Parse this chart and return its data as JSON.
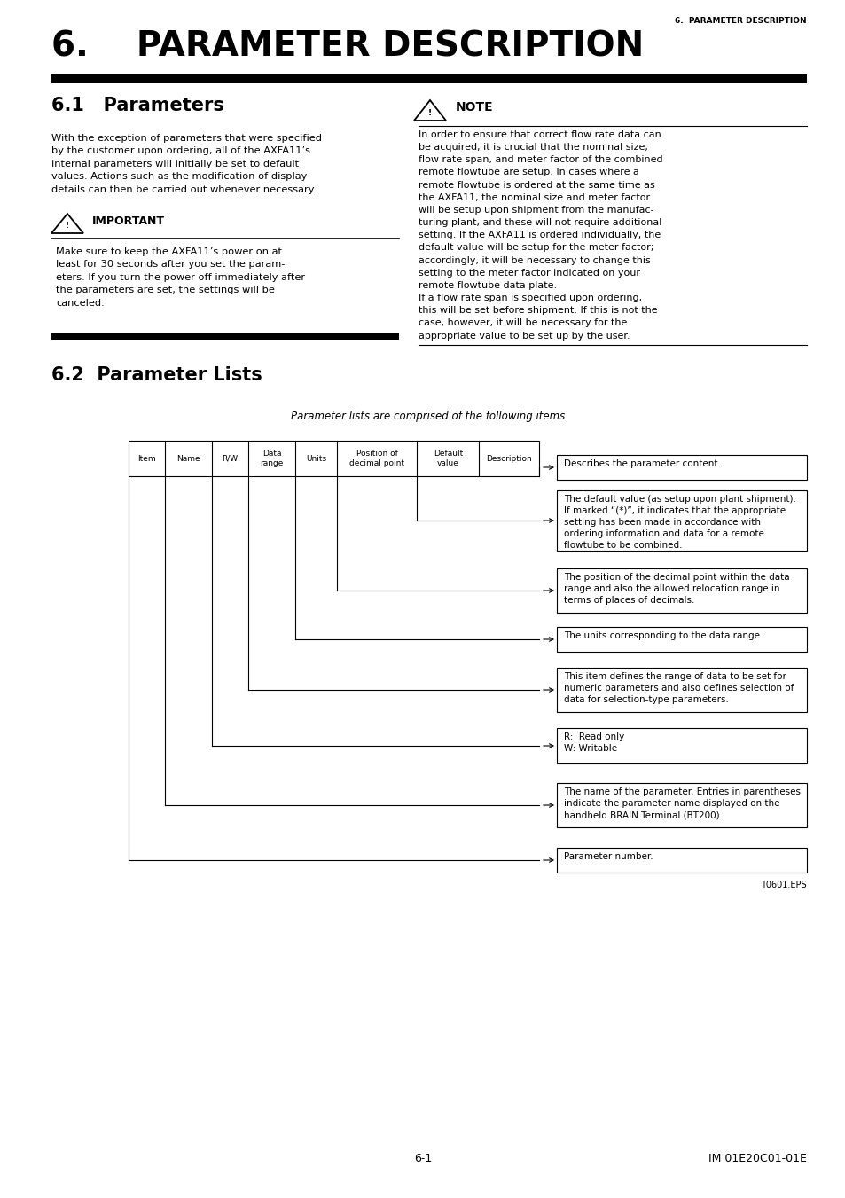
{
  "page_header": "6.  PARAMETER DESCRIPTION",
  "main_title": "6.    PARAMETER DESCRIPTION",
  "section1_title": "6.1   Parameters",
  "note_title": "NOTE",
  "section1_body": "With the exception of parameters that were specified\nby the customer upon ordering, all of the AXFA11’s\ninternal parameters will initially be set to default\nvalues. Actions such as the modification of display\ndetails can then be carried out whenever necessary.",
  "important_title": "IMPORTANT",
  "important_body": "Make sure to keep the AXFA11’s power on at\nleast for 30 seconds after you set the param-\neters. If you turn the power off immediately after\nthe parameters are set, the settings will be\ncanceled.",
  "note_body": "In order to ensure that correct flow rate data can\nbe acquired, it is crucial that the nominal size,\nflow rate span, and meter factor of the combined\nremote flowtube are setup. In cases where a\nremote flowtube is ordered at the same time as\nthe AXFA11, the nominal size and meter factor\nwill be setup upon shipment from the manufac-\nturing plant, and these will not require additional\nsetting. If the AXFA11 is ordered individually, the\ndefault value will be setup for the meter factor;\naccordingly, it will be necessary to change this\nsetting to the meter factor indicated on your\nremote flowtube data plate.\nIf a flow rate span is specified upon ordering,\nthis will be set before shipment. If this is not the\ncase, however, it will be necessary for the\nappropriate value to be set up by the user.",
  "section2_title": "6.2  Parameter Lists",
  "param_list_intro": "Parameter lists are comprised of the following items.",
  "table_headers": [
    "Item",
    "Name",
    "R/W",
    "Data\nrange",
    "Units",
    "Position of\ndecimal point",
    "Default\nvalue",
    "Description"
  ],
  "descriptions": [
    "Describes the parameter content.",
    "The default value (as setup upon plant shipment).\nIf marked “(*)”, it indicates that the appropriate\nsetting has been made in accordance with\nordering information and data for a remote\nflowtube to be combined.",
    "The position of the decimal point within the data\nrange and also the allowed relocation range in\nterms of places of decimals.",
    "The units corresponding to the data range.",
    "This item defines the range of data to be set for\nnumeric parameters and also defines selection of\ndata for selection-type parameters.",
    "R:  Read only\nW: Writable",
    "The name of the parameter. Entries in parentheses\nindicate the parameter name displayed on the\nhandheld BRAIN Terminal (BT200).",
    "Parameter number."
  ],
  "figure_label": "T0601.EPS",
  "page_num": "6-1",
  "footer_right": "IM 01E20C01-01E"
}
